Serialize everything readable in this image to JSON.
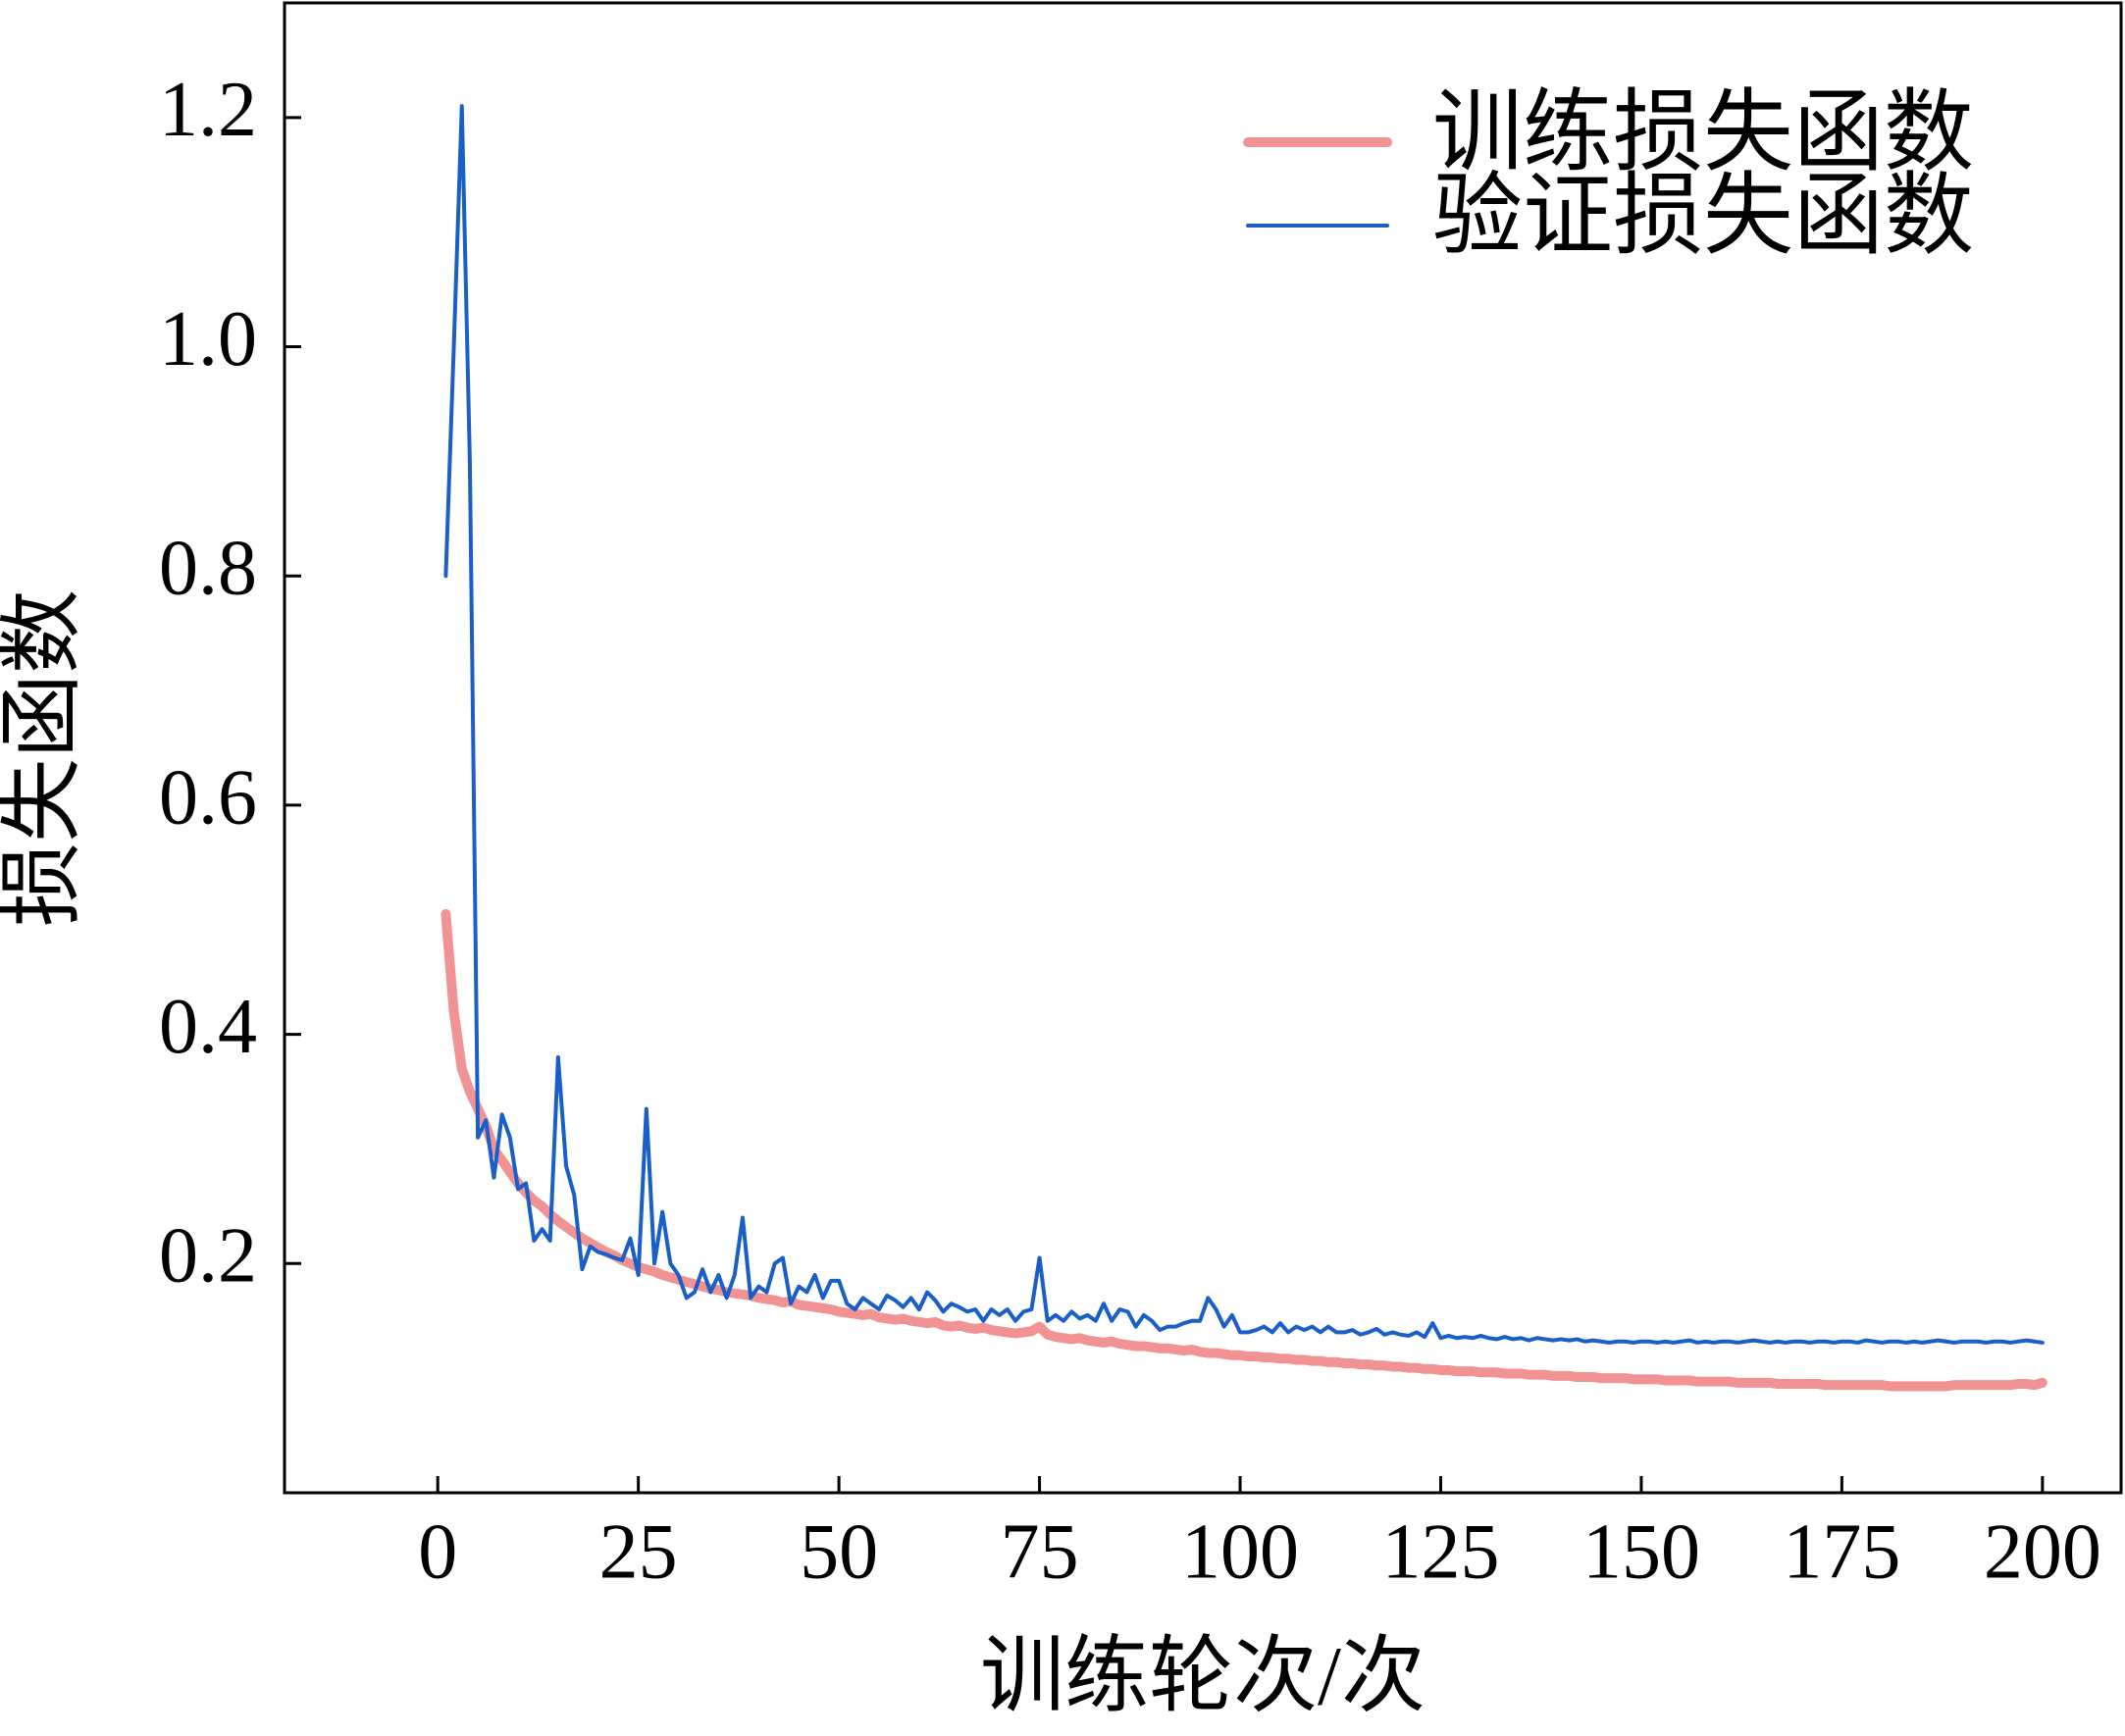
{
  "chart_data": {
    "type": "line",
    "x_label": "训练轮次/次",
    "y_label": "损失函数",
    "xlim": [
      -19.1,
      209.8
    ],
    "ylim": [
      0,
      1.3
    ],
    "xticks": [
      0,
      25,
      50,
      75,
      100,
      125,
      150,
      175,
      200
    ],
    "yticks": [
      0.2,
      0.4,
      0.6,
      0.8,
      {
        "value": 1,
        "label": "1.0"
      },
      1.2
    ],
    "legend": "upper right",
    "x": [
      1,
      2,
      3,
      4,
      5,
      6,
      7,
      8,
      9,
      10,
      11,
      12,
      13,
      14,
      15,
      16,
      17,
      18,
      19,
      20,
      21,
      22,
      23,
      24,
      25,
      26,
      27,
      28,
      29,
      30,
      31,
      32,
      33,
      34,
      35,
      36,
      37,
      38,
      39,
      40,
      41,
      42,
      43,
      44,
      45,
      46,
      47,
      48,
      49,
      50,
      51,
      52,
      53,
      54,
      55,
      56,
      57,
      58,
      59,
      60,
      61,
      62,
      63,
      64,
      65,
      66,
      67,
      68,
      69,
      70,
      71,
      72,
      73,
      74,
      75,
      76,
      77,
      78,
      79,
      80,
      81,
      82,
      83,
      84,
      85,
      86,
      87,
      88,
      89,
      90,
      91,
      92,
      93,
      94,
      95,
      96,
      97,
      98,
      99,
      100,
      101,
      102,
      103,
      104,
      105,
      106,
      107,
      108,
      109,
      110,
      111,
      112,
      113,
      114,
      115,
      116,
      117,
      118,
      119,
      120,
      121,
      122,
      123,
      124,
      125,
      126,
      127,
      128,
      129,
      130,
      131,
      132,
      133,
      134,
      135,
      136,
      137,
      138,
      139,
      140,
      141,
      142,
      143,
      144,
      145,
      146,
      147,
      148,
      149,
      150,
      151,
      152,
      153,
      154,
      155,
      156,
      157,
      158,
      159,
      160,
      161,
      162,
      163,
      164,
      165,
      166,
      167,
      168,
      169,
      170,
      171,
      172,
      173,
      174,
      175,
      176,
      177,
      178,
      179,
      180,
      181,
      182,
      183,
      184,
      185,
      186,
      187,
      188,
      189,
      190,
      191,
      192,
      193,
      194,
      195,
      196,
      197,
      198,
      199,
      200
    ],
    "series": [
      {
        "name": "训练损失函数",
        "color": "#f29393",
        "values": [
          0.505,
          0.42,
          0.37,
          0.35,
          0.335,
          0.32,
          0.3,
          0.29,
          0.28,
          0.27,
          0.262,
          0.255,
          0.25,
          0.243,
          0.237,
          0.232,
          0.227,
          0.222,
          0.218,
          0.214,
          0.21,
          0.207,
          0.203,
          0.2,
          0.197,
          0.195,
          0.193,
          0.19,
          0.188,
          0.186,
          0.184,
          0.182,
          0.18,
          0.178,
          0.177,
          0.175,
          0.174,
          0.173,
          0.172,
          0.17,
          0.169,
          0.168,
          0.166,
          0.167,
          0.164,
          0.163,
          0.162,
          0.161,
          0.16,
          0.158,
          0.157,
          0.156,
          0.155,
          0.156,
          0.153,
          0.152,
          0.151,
          0.152,
          0.15,
          0.149,
          0.148,
          0.149,
          0.146,
          0.145,
          0.146,
          0.144,
          0.143,
          0.144,
          0.142,
          0.141,
          0.14,
          0.139,
          0.14,
          0.141,
          0.145,
          0.138,
          0.136,
          0.135,
          0.134,
          0.135,
          0.133,
          0.132,
          0.131,
          0.132,
          0.13,
          0.129,
          0.128,
          0.128,
          0.127,
          0.126,
          0.126,
          0.125,
          0.124,
          0.125,
          0.123,
          0.122,
          0.122,
          0.121,
          0.12,
          0.12,
          0.119,
          0.119,
          0.118,
          0.118,
          0.117,
          0.117,
          0.116,
          0.116,
          0.115,
          0.115,
          0.114,
          0.114,
          0.113,
          0.113,
          0.112,
          0.112,
          0.111,
          0.111,
          0.11,
          0.11,
          0.109,
          0.109,
          0.108,
          0.108,
          0.107,
          0.107,
          0.106,
          0.106,
          0.106,
          0.105,
          0.105,
          0.105,
          0.104,
          0.104,
          0.104,
          0.103,
          0.103,
          0.103,
          0.102,
          0.102,
          0.102,
          0.101,
          0.101,
          0.101,
          0.1,
          0.1,
          0.1,
          0.1,
          0.099,
          0.099,
          0.099,
          0.099,
          0.098,
          0.098,
          0.098,
          0.098,
          0.097,
          0.097,
          0.097,
          0.097,
          0.097,
          0.096,
          0.096,
          0.096,
          0.096,
          0.096,
          0.095,
          0.095,
          0.095,
          0.095,
          0.095,
          0.095,
          0.094,
          0.094,
          0.094,
          0.094,
          0.094,
          0.094,
          0.094,
          0.094,
          0.093,
          0.093,
          0.093,
          0.093,
          0.093,
          0.093,
          0.093,
          0.093,
          0.094,
          0.094,
          0.094,
          0.094,
          0.094,
          0.094,
          0.094,
          0.094,
          0.095,
          0.095,
          0.094,
          0.096
        ]
      },
      {
        "name": "验证损失函数",
        "color": "#1a5fc8",
        "values": [
          0.8,
          1.0,
          1.21,
          0.9,
          0.31,
          0.325,
          0.275,
          0.33,
          0.31,
          0.265,
          0.27,
          0.22,
          0.23,
          0.22,
          0.38,
          0.285,
          0.26,
          0.195,
          0.215,
          0.21,
          0.208,
          0.205,
          0.203,
          0.222,
          0.19,
          0.335,
          0.2,
          0.245,
          0.2,
          0.19,
          0.17,
          0.175,
          0.195,
          0.175,
          0.19,
          0.17,
          0.19,
          0.24,
          0.17,
          0.18,
          0.175,
          0.2,
          0.205,
          0.165,
          0.18,
          0.175,
          0.19,
          0.17,
          0.185,
          0.185,
          0.165,
          0.16,
          0.17,
          0.165,
          0.16,
          0.172,
          0.168,
          0.162,
          0.17,
          0.16,
          0.175,
          0.168,
          0.158,
          0.165,
          0.162,
          0.158,
          0.16,
          0.15,
          0.16,
          0.155,
          0.16,
          0.15,
          0.158,
          0.16,
          0.205,
          0.15,
          0.155,
          0.15,
          0.158,
          0.152,
          0.155,
          0.15,
          0.165,
          0.15,
          0.16,
          0.158,
          0.145,
          0.155,
          0.15,
          0.142,
          0.145,
          0.145,
          0.148,
          0.15,
          0.15,
          0.17,
          0.16,
          0.145,
          0.155,
          0.14,
          0.14,
          0.142,
          0.145,
          0.14,
          0.148,
          0.14,
          0.145,
          0.142,
          0.145,
          0.14,
          0.145,
          0.14,
          0.14,
          0.142,
          0.138,
          0.14,
          0.143,
          0.138,
          0.14,
          0.138,
          0.137,
          0.14,
          0.136,
          0.148,
          0.135,
          0.137,
          0.135,
          0.136,
          0.135,
          0.137,
          0.135,
          0.134,
          0.136,
          0.134,
          0.135,
          0.133,
          0.135,
          0.134,
          0.133,
          0.134,
          0.133,
          0.134,
          0.132,
          0.133,
          0.132,
          0.131,
          0.132,
          0.132,
          0.131,
          0.132,
          0.132,
          0.131,
          0.132,
          0.131,
          0.132,
          0.133,
          0.131,
          0.132,
          0.131,
          0.132,
          0.132,
          0.131,
          0.132,
          0.133,
          0.132,
          0.131,
          0.132,
          0.131,
          0.132,
          0.132,
          0.131,
          0.132,
          0.132,
          0.131,
          0.132,
          0.132,
          0.131,
          0.133,
          0.132,
          0.131,
          0.132,
          0.132,
          0.131,
          0.132,
          0.131,
          0.132,
          0.133,
          0.132,
          0.131,
          0.132,
          0.132,
          0.132,
          0.131,
          0.132,
          0.132,
          0.131,
          0.132,
          0.133,
          0.132,
          0.131
        ]
      }
    ]
  }
}
